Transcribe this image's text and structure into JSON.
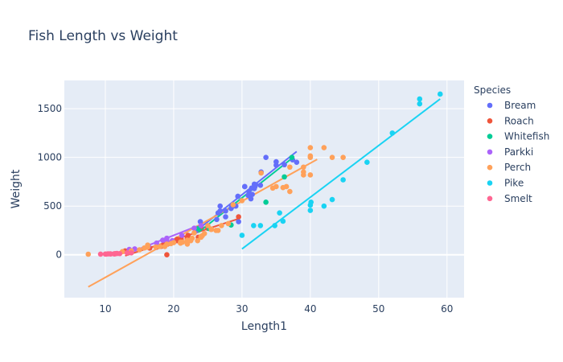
{
  "chart_data": {
    "type": "scatter",
    "title": "Fish Length vs Weight",
    "xlabel": "Length1",
    "ylabel": "Weight",
    "xlim": [
      4,
      62.5
    ],
    "ylim": [
      -440,
      1790
    ],
    "xticks": [
      10,
      20,
      30,
      40,
      50,
      60
    ],
    "yticks": [
      0,
      500,
      1000,
      1500
    ],
    "legend_title": "Species",
    "legend_position": "right",
    "grid": true,
    "trendline": "ols",
    "series": [
      {
        "name": "Bream",
        "color": "#636efa",
        "x": [
          23.2,
          24,
          23.9,
          26.3,
          26.5,
          26.8,
          26.8,
          27.6,
          27.6,
          28.5,
          28.4,
          28.7,
          29.1,
          29.5,
          29.4,
          29.4,
          30.4,
          30.4,
          30.9,
          31,
          31.3,
          31.4,
          31.5,
          31.8,
          31.9,
          31.8,
          32,
          32.7,
          32.8,
          33.5,
          35,
          35,
          36.2,
          37.4,
          38
        ],
        "y": [
          242,
          290,
          340,
          363,
          430,
          450,
          500,
          390,
          450,
          500,
          475,
          500,
          500,
          340,
          600,
          600,
          700,
          700,
          610,
          650,
          575,
          685,
          620,
          680,
          700,
          725,
          720,
          714,
          850,
          1000,
          920,
          955,
          925,
          975,
          950
        ],
        "trend": [
          [
            23.2,
            240
          ],
          [
            38,
            1060
          ]
        ]
      },
      {
        "name": "Roach",
        "color": "#EF553B",
        "x": [
          12.9,
          16.5,
          17.5,
          18.2,
          18.6,
          19,
          19.1,
          19.4,
          20.4,
          20.5,
          20.5,
          21,
          21.1,
          22,
          22,
          22.1,
          23.6,
          24,
          25,
          29.5
        ],
        "y": [
          40,
          69,
          78,
          87,
          120,
          0,
          110,
          120,
          150,
          145,
          160,
          140,
          160,
          169,
          161,
          200,
          180,
          290,
          272,
          390
        ],
        "trend": [
          [
            12.9,
            -10
          ],
          [
            29.5,
            370
          ]
        ]
      },
      {
        "name": "Whitefish",
        "color": "#00cc96",
        "x": [
          23.6,
          25.2,
          28.4,
          33.5,
          36.2,
          37.3
        ],
        "y": [
          270,
          270,
          306,
          540,
          800,
          1000
        ],
        "trend": [
          [
            23.6,
            230
          ],
          [
            37.3,
            990
          ]
        ]
      },
      {
        "name": "Parkki",
        "color": "#ab63fa",
        "x": [
          13.5,
          14.3,
          16.3,
          17.5,
          18.4,
          19,
          19,
          19.8,
          21.2,
          23,
          24
        ],
        "y": [
          55,
          60,
          90,
          120,
          150,
          140,
          170,
          145,
          200,
          273,
          300
        ],
        "trend": [
          [
            13.5,
            20
          ],
          [
            24,
            310
          ]
        ]
      },
      {
        "name": "Perch",
        "color": "#FFA15A",
        "x": [
          7.5,
          12.5,
          13.8,
          15,
          15.7,
          16.2,
          16.2,
          17.4,
          18,
          18.7,
          19,
          19.6,
          20,
          21,
          21,
          21,
          21.3,
          22,
          22,
          22,
          22,
          22.5,
          22.5,
          22.7,
          23,
          23.5,
          24,
          24,
          24.2,
          24.5,
          25,
          25.5,
          25.5,
          26.2,
          26.5,
          27,
          28,
          28.7,
          30,
          32.8,
          34.5,
          35,
          36.5,
          36,
          37,
          37,
          39,
          39,
          39,
          40,
          40,
          40,
          40,
          42,
          43.2,
          44.8
        ],
        "y": [
          5.9,
          32,
          40,
          51.5,
          70,
          100,
          78,
          80,
          85,
          85,
          110,
          115,
          125,
          130,
          120,
          120,
          130,
          135,
          110,
          130,
          150,
          145,
          150,
          170,
          225,
          145,
          188,
          180,
          197,
          218,
          300,
          260,
          265,
          250,
          250,
          300,
          320,
          514,
          556,
          840,
          685,
          700,
          700,
          690,
          900,
          650,
          820,
          850,
          900,
          1015,
          820,
          1100,
          1000,
          1100,
          1000,
          1000
        ],
        "trend": [
          [
            7.5,
            -330
          ],
          [
            41,
            980
          ]
        ]
      },
      {
        "name": "Pike",
        "color": "#19d3f3",
        "x": [
          30,
          31.7,
          32.7,
          34.8,
          35.5,
          36,
          40,
          40,
          40.1,
          42,
          43.2,
          44.8,
          48.3,
          52,
          56,
          56,
          59
        ],
        "y": [
          200,
          300,
          300,
          300,
          430,
          345,
          456,
          510,
          540,
          500,
          567,
          770,
          950,
          1250,
          1600,
          1550,
          1650
        ],
        "trend": [
          [
            30,
            60
          ],
          [
            59,
            1600
          ]
        ]
      },
      {
        "name": "Smelt",
        "color": "#FF6692",
        "x": [
          9.3,
          10,
          10.1,
          10.4,
          10.7,
          10.8,
          11.3,
          11.3,
          11.4,
          11.5,
          11.7,
          12.1,
          13.2,
          13.8
        ],
        "y": [
          6.7,
          7.5,
          7,
          9.7,
          9.8,
          8.7,
          10,
          9.9,
          9.8,
          12.2,
          13.4,
          12.2,
          19.7,
          19.9
        ],
        "trend": [
          [
            9.3,
            3
          ],
          [
            13.8,
            21
          ]
        ]
      }
    ]
  }
}
